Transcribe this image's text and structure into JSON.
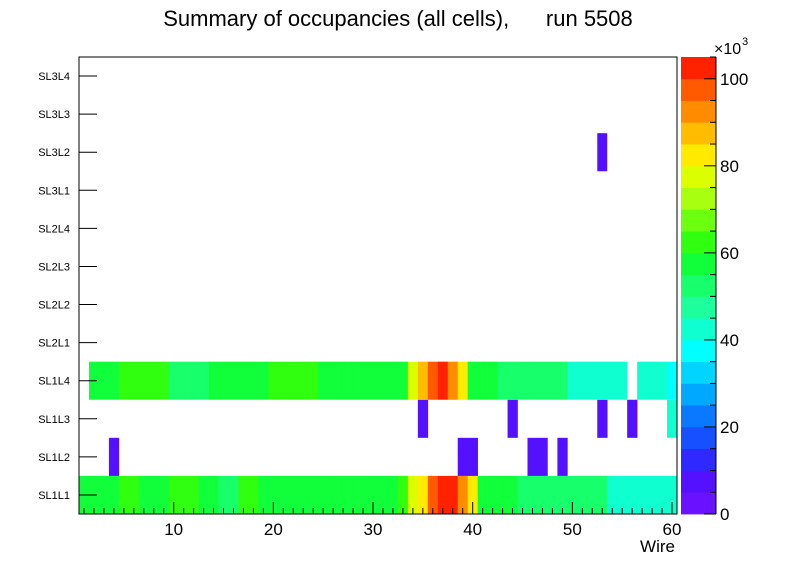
{
  "chart_data": {
    "type": "heatmap",
    "title": "Summary of occupancies (all cells),      run 5508",
    "xlabel": "Wire",
    "ylabel": "",
    "xlim": [
      0.5,
      60.5
    ],
    "x_ticks": [
      10,
      20,
      30,
      40,
      50,
      60
    ],
    "layers": [
      "SL1L1",
      "SL1L2",
      "SL1L3",
      "SL1L4",
      "SL2L1",
      "SL2L2",
      "SL2L3",
      "SL2L4",
      "SL3L1",
      "SL3L2",
      "SL3L3",
      "SL3L4"
    ],
    "z_range": [
      0,
      105
    ],
    "z_multiplier_label": "×10",
    "z_multiplier_exp": "3",
    "z_ticks": [
      0,
      20,
      40,
      60,
      80,
      100
    ],
    "rows": {
      "SL1L1": [
        58,
        58,
        58,
        58,
        62,
        62,
        58,
        58,
        58,
        62,
        62,
        62,
        55,
        55,
        50,
        50,
        62,
        62,
        58,
        58,
        58,
        58,
        58,
        58,
        58,
        58,
        58,
        58,
        58,
        58,
        58,
        58,
        63,
        75,
        82,
        95,
        105,
        105,
        93,
        80,
        58,
        58,
        58,
        58,
        50,
        50,
        50,
        50,
        50,
        50,
        50,
        50,
        50,
        44,
        44,
        44,
        44,
        44,
        44,
        44
      ],
      "SL1L2": [
        0,
        0,
        0,
        5,
        0,
        0,
        0,
        0,
        0,
        0,
        0,
        0,
        0,
        0,
        0,
        0,
        0,
        0,
        0,
        0,
        0,
        0,
        0,
        0,
        0,
        0,
        0,
        0,
        0,
        0,
        0,
        0,
        0,
        0,
        0,
        0,
        0,
        0,
        5,
        5,
        0,
        0,
        0,
        0,
        0,
        5,
        5,
        0,
        5,
        0,
        0,
        0,
        0,
        0,
        0,
        0,
        0,
        0,
        0,
        0
      ],
      "SL1L3": [
        0,
        0,
        0,
        0,
        0,
        0,
        0,
        0,
        0,
        0,
        0,
        0,
        0,
        0,
        0,
        0,
        0,
        0,
        0,
        0,
        0,
        0,
        0,
        0,
        0,
        0,
        0,
        0,
        0,
        0,
        0,
        0,
        0,
        0,
        5,
        0,
        0,
        0,
        0,
        0,
        0,
        0,
        0,
        5,
        0,
        0,
        0,
        0,
        0,
        0,
        0,
        0,
        5,
        0,
        0,
        5,
        0,
        0,
        0,
        41
      ],
      "SL1L4": [
        0,
        58,
        58,
        55,
        62,
        62,
        62,
        62,
        62,
        50,
        50,
        50,
        50,
        55,
        55,
        55,
        55,
        55,
        55,
        62,
        62,
        62,
        62,
        62,
        55,
        55,
        55,
        55,
        55,
        55,
        55,
        55,
        55,
        75,
        88,
        95,
        105,
        93,
        80,
        58,
        55,
        58,
        50,
        50,
        50,
        50,
        50,
        50,
        50,
        44,
        44,
        44,
        44,
        44,
        44,
        0,
        44,
        44,
        44,
        36
      ]
    },
    "sparse_cells": [
      {
        "layer": "SL3L2",
        "wire": 53,
        "value": 5
      }
    ]
  }
}
